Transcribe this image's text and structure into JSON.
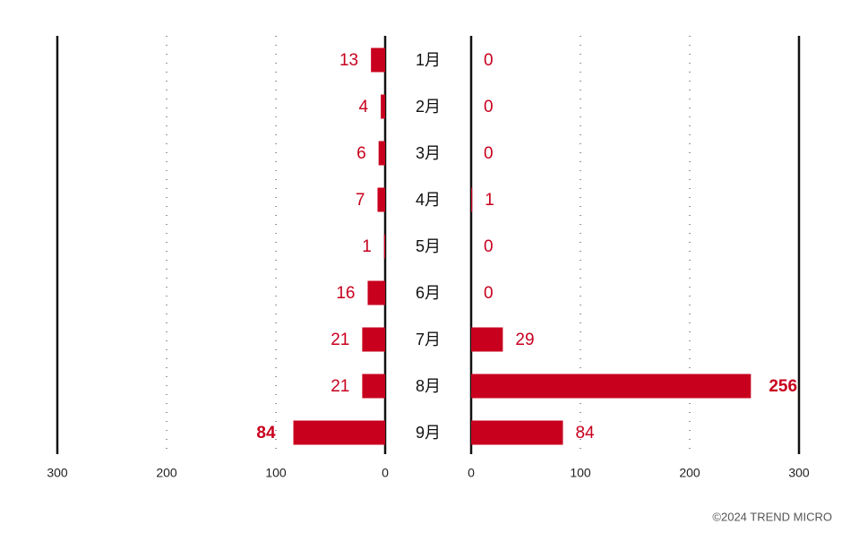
{
  "chart_data": {
    "type": "butterfly",
    "categories": [
      "1月",
      "2月",
      "3月",
      "4月",
      "5月",
      "6月",
      "7月",
      "8月",
      "9月"
    ],
    "left": {
      "color": "#c8001e",
      "values": [
        13,
        4,
        6,
        7,
        1,
        16,
        21,
        21,
        84
      ],
      "xlim": [
        0,
        300
      ],
      "xticks": [
        0,
        100,
        200,
        300
      ]
    },
    "right": {
      "color": "#c8001e",
      "values": [
        0,
        0,
        0,
        1,
        0,
        0,
        29,
        256,
        84
      ],
      "xlim": [
        0,
        300
      ],
      "xticks": [
        0,
        100,
        200,
        300
      ]
    },
    "credit": "©2024 TREND MICRO"
  }
}
